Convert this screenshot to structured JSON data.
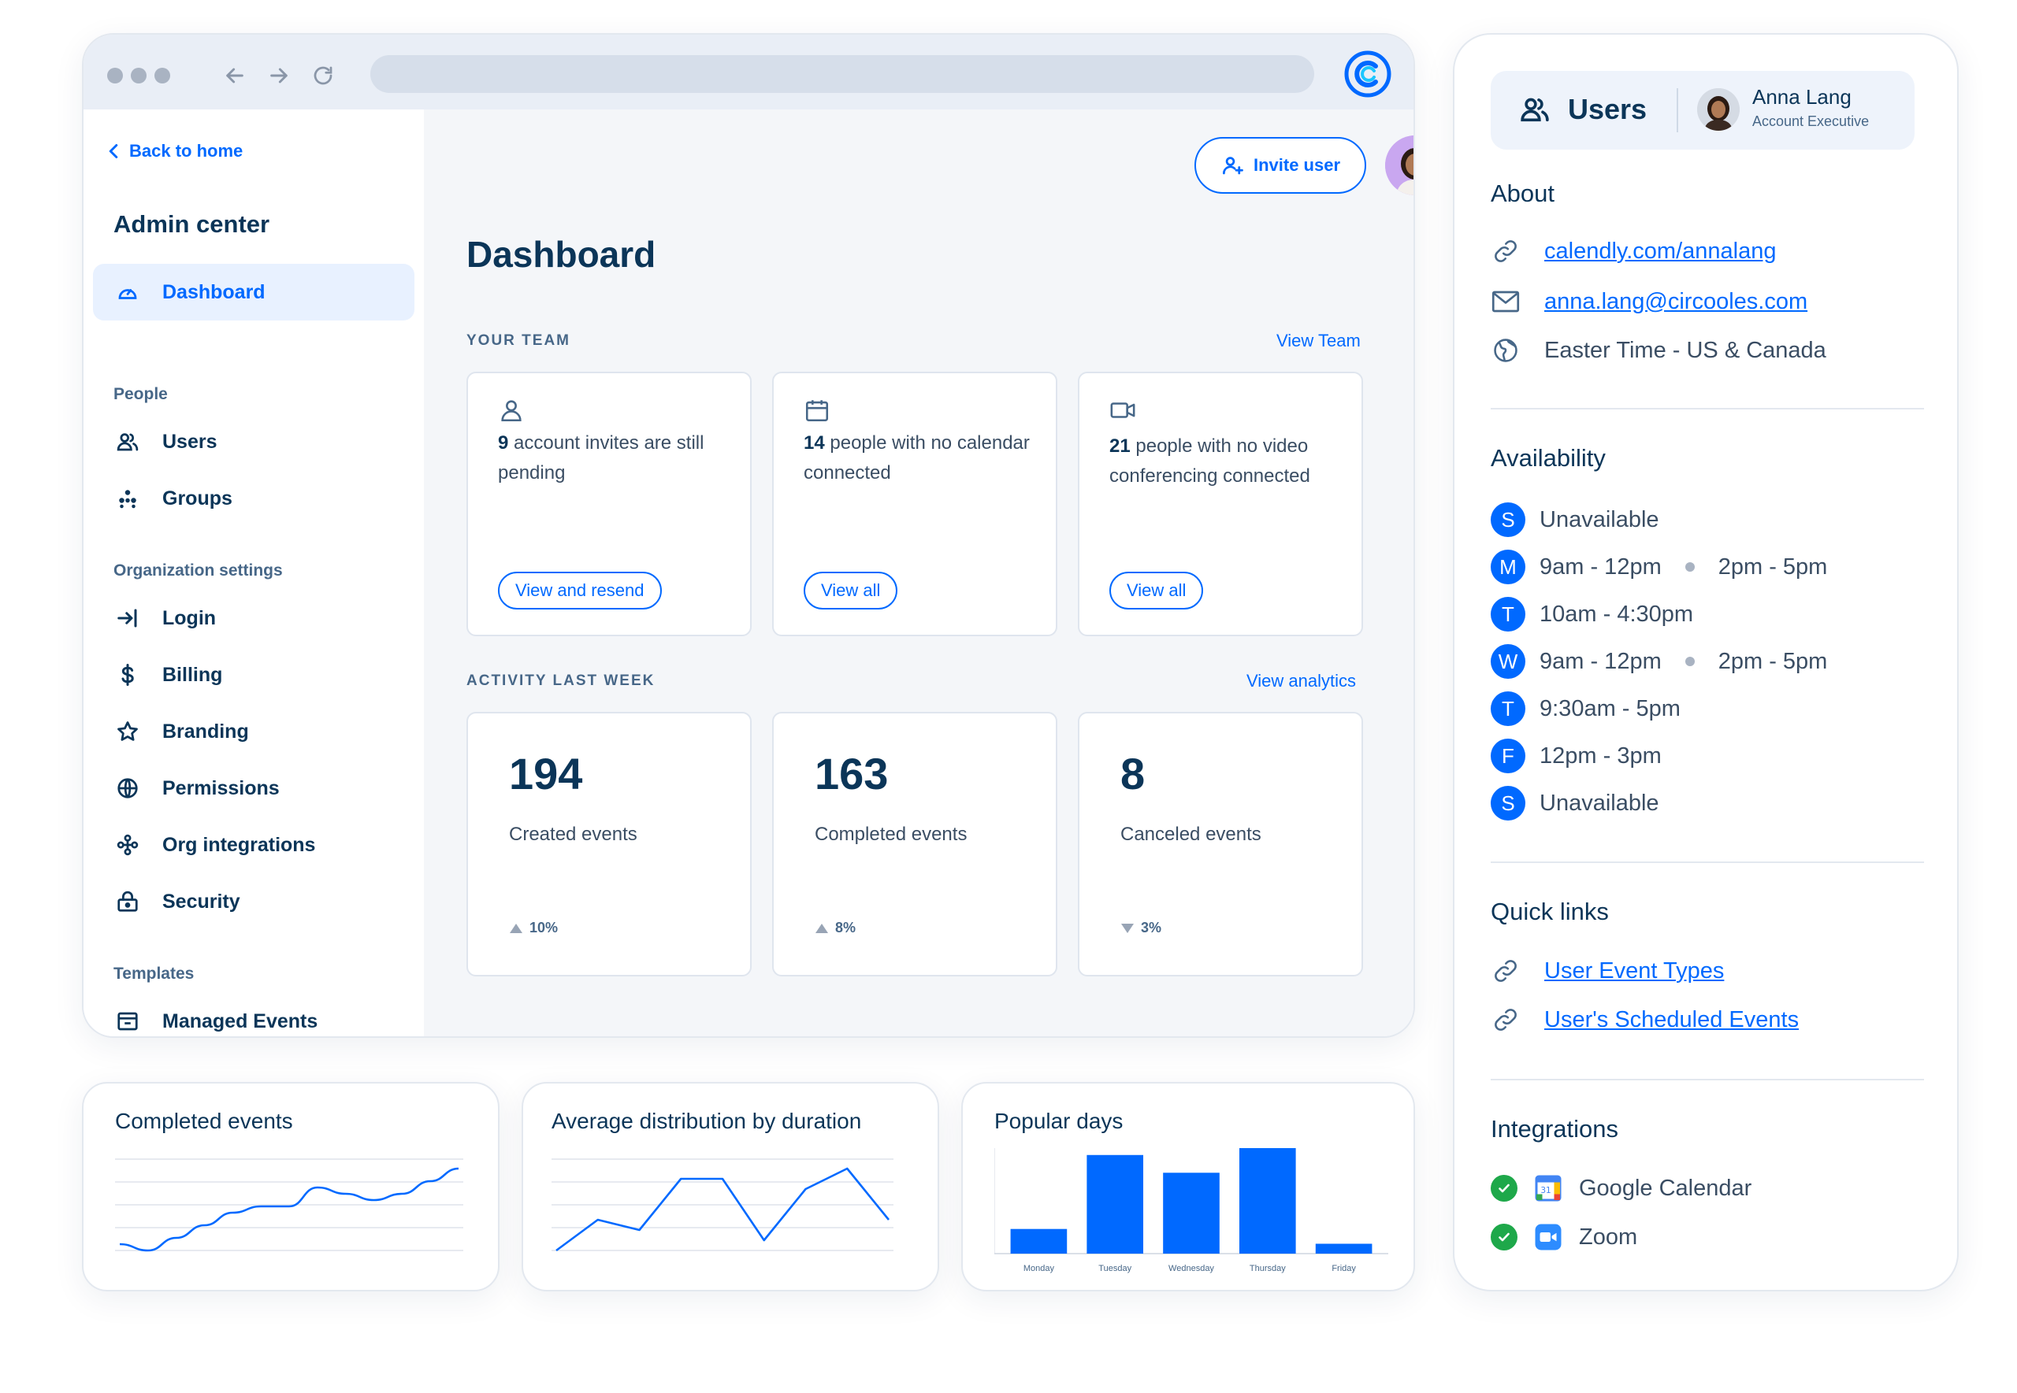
{
  "admin": {
    "back_label": "Back to home",
    "title": "Admin center",
    "active_item": "Dashboard",
    "sections": {
      "people": "People",
      "org": "Organization settings",
      "templates": "Templates"
    },
    "items": {
      "users": "Users",
      "groups": "Groups",
      "login": "Login",
      "billing": "Billing",
      "branding": "Branding",
      "permissions": "Permissions",
      "org_integrations": "Org integrations",
      "security": "Security",
      "managed_events": "Managed Events"
    }
  },
  "main": {
    "invite_label": "Invite user",
    "title": "Dashboard",
    "team": {
      "label": "YOUR TEAM",
      "link": "View Team",
      "tiles": [
        {
          "count": "9",
          "text": "account invites are still pending",
          "action": "View and resend",
          "icon": "user-icon"
        },
        {
          "count": "14",
          "text": "people with no calendar connected",
          "action": "View all",
          "icon": "calendar-icon"
        },
        {
          "count": "21",
          "text": "people with no video conferencing connected",
          "action": "View all",
          "icon": "video-icon"
        }
      ]
    },
    "activity": {
      "label": "ACTIVITY LAST WEEK",
      "link": "View analytics",
      "stats": [
        {
          "value": "194",
          "label": "Created events",
          "change": "10%",
          "direction": "up"
        },
        {
          "value": "163",
          "label": "Completed events",
          "change": "8%",
          "direction": "up"
        },
        {
          "value": "8",
          "label": "Canceled events",
          "change": "3%",
          "direction": "down"
        }
      ]
    }
  },
  "cards": {
    "completed_title": "Completed events",
    "distribution_title": "Average distribution by duration",
    "popular_title": "Popular days"
  },
  "chart_data": [
    {
      "type": "line",
      "title": "Completed events",
      "values": [
        2,
        1,
        3,
        5,
        7,
        8,
        8,
        11,
        10,
        9,
        10,
        12,
        14
      ]
    },
    {
      "type": "line",
      "title": "Average distribution by duration",
      "values": [
        3,
        6,
        5,
        10,
        10,
        4,
        9,
        11,
        6
      ]
    },
    {
      "type": "bar",
      "title": "Popular days",
      "categories": [
        "Monday",
        "Tuesday",
        "Wednesday",
        "Thursday",
        "Friday"
      ],
      "values": [
        25,
        100,
        82,
        107,
        10
      ],
      "color": "#0069ff"
    }
  ],
  "profile": {
    "header_label": "Users",
    "name": "Anna Lang",
    "role": "Account Executive",
    "about_heading": "About",
    "link": "calendly.com/annalang",
    "email": "anna.lang@circooles.com",
    "timezone": "Easter Time - US & Canada",
    "availability_heading": "Availability",
    "availability": [
      {
        "day": "S",
        "slots": [
          "Unavailable"
        ]
      },
      {
        "day": "M",
        "slots": [
          "9am - 12pm",
          "2pm - 5pm"
        ]
      },
      {
        "day": "T",
        "slots": [
          "10am - 4:30pm"
        ]
      },
      {
        "day": "W",
        "slots": [
          "9am - 12pm",
          "2pm - 5pm"
        ]
      },
      {
        "day": "T",
        "slots": [
          "9:30am - 5pm"
        ]
      },
      {
        "day": "F",
        "slots": [
          "12pm - 3pm"
        ]
      },
      {
        "day": "S",
        "slots": [
          "Unavailable"
        ]
      }
    ],
    "quick_links_heading": "Quick links",
    "quick_links": [
      "User Event Types",
      "User's Scheduled Events"
    ],
    "integrations_heading": "Integrations",
    "integrations": [
      "Google Calendar",
      "Zoom"
    ]
  },
  "colors": {
    "accent": "#0069ff",
    "text": "#0b3558",
    "success": "#1ea84a"
  }
}
